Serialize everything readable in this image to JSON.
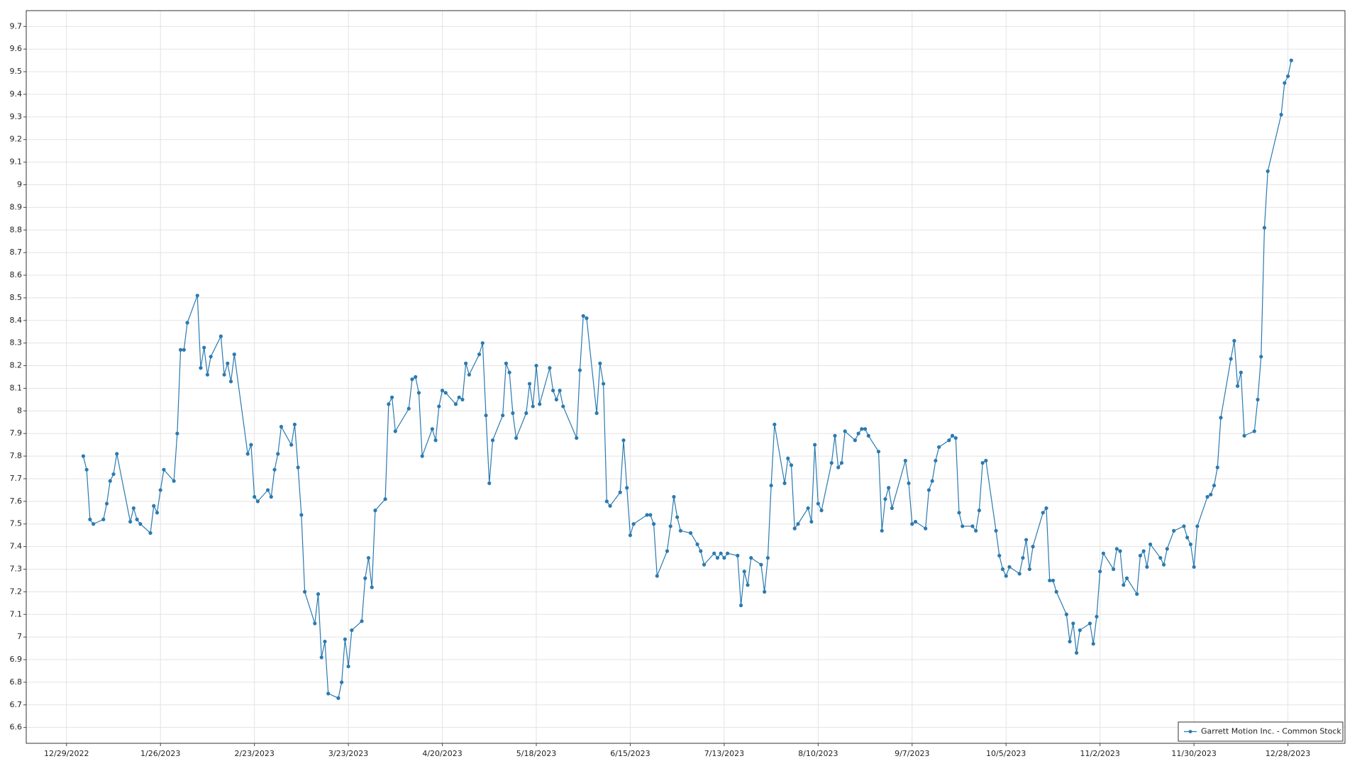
{
  "chart_data": {
    "type": "line",
    "xlim": [
      "12/17/2022",
      "1/14/2024"
    ],
    "ylim": [
      6.53,
      9.77
    ],
    "xticks": [
      "12/29/2022",
      "1/26/2023",
      "2/23/2023",
      "3/23/2023",
      "4/20/2023",
      "5/18/2023",
      "6/15/2023",
      "7/13/2023",
      "8/10/2023",
      "9/7/2023",
      "10/5/2023",
      "11/2/2023",
      "11/30/2023",
      "12/28/2023"
    ],
    "yticks": [
      6.6,
      6.7,
      6.8,
      6.9,
      7,
      7.1,
      7.2,
      7.3,
      7.4,
      7.5,
      7.6,
      7.7,
      7.8,
      7.9,
      8,
      8.1,
      8.2,
      8.3,
      8.4,
      8.5,
      8.6,
      8.7,
      8.8,
      8.9,
      9,
      9.1,
      9.2,
      9.3,
      9.4,
      9.5,
      9.6,
      9.7
    ],
    "grid": true,
    "legend": "lower right",
    "x": [
      "1/3/2023",
      "1/4/2023",
      "1/5/2023",
      "1/6/2023",
      "1/9/2023",
      "1/10/2023",
      "1/11/2023",
      "1/12/2023",
      "1/13/2023",
      "1/17/2023",
      "1/18/2023",
      "1/19/2023",
      "1/20/2023",
      "1/23/2023",
      "1/24/2023",
      "1/25/2023",
      "1/26/2023",
      "1/27/2023",
      "1/30/2023",
      "1/31/2023",
      "2/1/2023",
      "2/2/2023",
      "2/3/2023",
      "2/6/2023",
      "2/7/2023",
      "2/8/2023",
      "2/9/2023",
      "2/10/2023",
      "2/13/2023",
      "2/14/2023",
      "2/15/2023",
      "2/16/2023",
      "2/17/2023",
      "2/21/2023",
      "2/22/2023",
      "2/23/2023",
      "2/24/2023",
      "2/27/2023",
      "2/28/2023",
      "3/1/2023",
      "3/2/2023",
      "3/3/2023",
      "3/6/2023",
      "3/7/2023",
      "3/8/2023",
      "3/9/2023",
      "3/10/2023",
      "3/13/2023",
      "3/14/2023",
      "3/15/2023",
      "3/16/2023",
      "3/17/2023",
      "3/20/2023",
      "3/21/2023",
      "3/22/2023",
      "3/23/2023",
      "3/24/2023",
      "3/27/2023",
      "3/28/2023",
      "3/29/2023",
      "3/30/2023",
      "3/31/2023",
      "4/3/2023",
      "4/4/2023",
      "4/5/2023",
      "4/6/2023",
      "4/10/2023",
      "4/11/2023",
      "4/12/2023",
      "4/13/2023",
      "4/14/2023",
      "4/17/2023",
      "4/18/2023",
      "4/19/2023",
      "4/20/2023",
      "4/21/2023",
      "4/24/2023",
      "4/25/2023",
      "4/26/2023",
      "4/27/2023",
      "4/28/2023",
      "5/1/2023",
      "5/2/2023",
      "5/3/2023",
      "5/4/2023",
      "5/5/2023",
      "5/8/2023",
      "5/9/2023",
      "5/10/2023",
      "5/11/2023",
      "5/12/2023",
      "5/15/2023",
      "5/16/2023",
      "5/17/2023",
      "5/18/2023",
      "5/19/2023",
      "5/22/2023",
      "5/23/2023",
      "5/24/2023",
      "5/25/2023",
      "5/26/2023",
      "5/30/2023",
      "5/31/2023",
      "6/1/2023",
      "6/2/2023",
      "6/5/2023",
      "6/6/2023",
      "6/7/2023",
      "6/8/2023",
      "6/9/2023",
      "6/12/2023",
      "6/13/2023",
      "6/14/2023",
      "6/15/2023",
      "6/16/2023",
      "6/20/2023",
      "6/21/2023",
      "6/22/2023",
      "6/23/2023",
      "6/26/2023",
      "6/27/2023",
      "6/28/2023",
      "6/29/2023",
      "6/30/2023",
      "7/3/2023",
      "7/5/2023",
      "7/6/2023",
      "7/7/2023",
      "7/10/2023",
      "7/11/2023",
      "7/12/2023",
      "7/13/2023",
      "7/14/2023",
      "7/17/2023",
      "7/18/2023",
      "7/19/2023",
      "7/20/2023",
      "7/21/2023",
      "7/24/2023",
      "7/25/2023",
      "7/26/2023",
      "7/27/2023",
      "7/28/2023",
      "7/31/2023",
      "8/1/2023",
      "8/2/2023",
      "8/3/2023",
      "8/4/2023",
      "8/7/2023",
      "8/8/2023",
      "8/9/2023",
      "8/10/2023",
      "8/11/2023",
      "8/14/2023",
      "8/15/2023",
      "8/16/2023",
      "8/17/2023",
      "8/18/2023",
      "8/21/2023",
      "8/22/2023",
      "8/23/2023",
      "8/24/2023",
      "8/25/2023",
      "8/28/2023",
      "8/29/2023",
      "8/30/2023",
      "8/31/2023",
      "9/1/2023",
      "9/5/2023",
      "9/6/2023",
      "9/7/2023",
      "9/8/2023",
      "9/11/2023",
      "9/12/2023",
      "9/13/2023",
      "9/14/2023",
      "9/15/2023",
      "9/18/2023",
      "9/19/2023",
      "9/20/2023",
      "9/21/2023",
      "9/22/2023",
      "9/25/2023",
      "9/26/2023",
      "9/27/2023",
      "9/28/2023",
      "9/29/2023",
      "10/2/2023",
      "10/3/2023",
      "10/4/2023",
      "10/5/2023",
      "10/6/2023",
      "10/9/2023",
      "10/10/2023",
      "10/11/2023",
      "10/12/2023",
      "10/13/2023",
      "10/16/2023",
      "10/17/2023",
      "10/18/2023",
      "10/19/2023",
      "10/20/2023",
      "10/23/2023",
      "10/24/2023",
      "10/25/2023",
      "10/26/2023",
      "10/27/2023",
      "10/30/2023",
      "10/31/2023",
      "11/1/2023",
      "11/2/2023",
      "11/3/2023",
      "11/6/2023",
      "11/7/2023",
      "11/8/2023",
      "11/9/2023",
      "11/10/2023",
      "11/13/2023",
      "11/14/2023",
      "11/15/2023",
      "11/16/2023",
      "11/17/2023",
      "11/20/2023",
      "11/21/2023",
      "11/22/2023",
      "11/24/2023",
      "11/27/2023",
      "11/28/2023",
      "11/29/2023",
      "11/30/2023",
      "12/1/2023",
      "12/4/2023",
      "12/5/2023",
      "12/6/2023",
      "12/7/2023",
      "12/8/2023",
      "12/11/2023",
      "12/12/2023",
      "12/13/2023",
      "12/14/2023",
      "12/15/2023",
      "12/18/2023",
      "12/19/2023",
      "12/20/2023",
      "12/21/2023",
      "12/22/2023",
      "12/26/2023",
      "12/27/2023",
      "12/28/2023",
      "12/29/2023"
    ],
    "series": [
      {
        "name": "Garrett Motion Inc. - Common Stock",
        "color": "#2a7ab0",
        "values": [
          7.8,
          7.74,
          7.52,
          7.5,
          7.52,
          7.59,
          7.69,
          7.72,
          7.81,
          7.51,
          7.57,
          7.52,
          7.5,
          7.46,
          7.58,
          7.55,
          7.65,
          7.74,
          7.69,
          7.9,
          8.27,
          8.27,
          8.39,
          8.51,
          8.19,
          8.28,
          8.16,
          8.24,
          8.33,
          8.16,
          8.21,
          8.13,
          8.25,
          7.81,
          7.85,
          7.62,
          7.6,
          7.65,
          7.62,
          7.74,
          7.81,
          7.93,
          7.85,
          7.94,
          7.75,
          7.54,
          7.2,
          7.06,
          7.19,
          6.91,
          6.98,
          6.75,
          6.73,
          6.8,
          6.99,
          6.87,
          7.03,
          7.07,
          7.26,
          7.35,
          7.22,
          7.56,
          7.61,
          8.03,
          8.06,
          7.91,
          8.01,
          8.14,
          8.15,
          8.08,
          7.8,
          7.92,
          7.87,
          8.02,
          8.09,
          8.08,
          8.03,
          8.06,
          8.05,
          8.21,
          8.16,
          8.25,
          8.3,
          7.98,
          7.68,
          7.87,
          7.98,
          8.21,
          8.17,
          7.99,
          7.88,
          7.99,
          8.12,
          8.02,
          8.2,
          8.03,
          8.19,
          8.09,
          8.05,
          8.09,
          8.02,
          7.88,
          8.18,
          8.42,
          8.41,
          7.99,
          8.21,
          8.12,
          7.6,
          7.58,
          7.64,
          7.87,
          7.66,
          7.45,
          7.5,
          7.54,
          7.54,
          7.5,
          7.27,
          7.38,
          7.49,
          7.62,
          7.53,
          7.47,
          7.46,
          7.41,
          7.38,
          7.32,
          7.37,
          7.35,
          7.37,
          7.35,
          7.37,
          7.36,
          7.14,
          7.29,
          7.23,
          7.35,
          7.32,
          7.2,
          7.35,
          7.67,
          7.94,
          7.68,
          7.79,
          7.76,
          7.48,
          7.5,
          7.57,
          7.51,
          7.85,
          7.59,
          7.56,
          7.77,
          7.89,
          7.75,
          7.77,
          7.91,
          7.87,
          7.9,
          7.92,
          7.92,
          7.89,
          7.82,
          7.47,
          7.61,
          7.66,
          7.57,
          7.78,
          7.68,
          7.5,
          7.51,
          7.48,
          7.65,
          7.69,
          7.78,
          7.84,
          7.87,
          7.89,
          7.88,
          7.55,
          7.49,
          7.49,
          7.47,
          7.56,
          7.77,
          7.78,
          7.47,
          7.36,
          7.3,
          7.27,
          7.31,
          7.28,
          7.35,
          7.43,
          7.3,
          7.4,
          7.55,
          7.57,
          7.25,
          7.25,
          7.2,
          7.1,
          6.98,
          7.06,
          6.93,
          7.03,
          7.06,
          6.97,
          7.09,
          7.29,
          7.37,
          7.3,
          7.39,
          7.38,
          7.23,
          7.26,
          7.19,
          7.36,
          7.38,
          7.31,
          7.41,
          7.35,
          7.32,
          7.39,
          7.47,
          7.49,
          7.44,
          7.41,
          7.31,
          7.49,
          7.62,
          7.63,
          7.67,
          7.75,
          7.97,
          8.23,
          8.31,
          8.11,
          8.17,
          7.89,
          7.91,
          8.05,
          8.24,
          8.81,
          9.06,
          9.31,
          9.45,
          9.48,
          9.55
        ]
      }
    ]
  }
}
